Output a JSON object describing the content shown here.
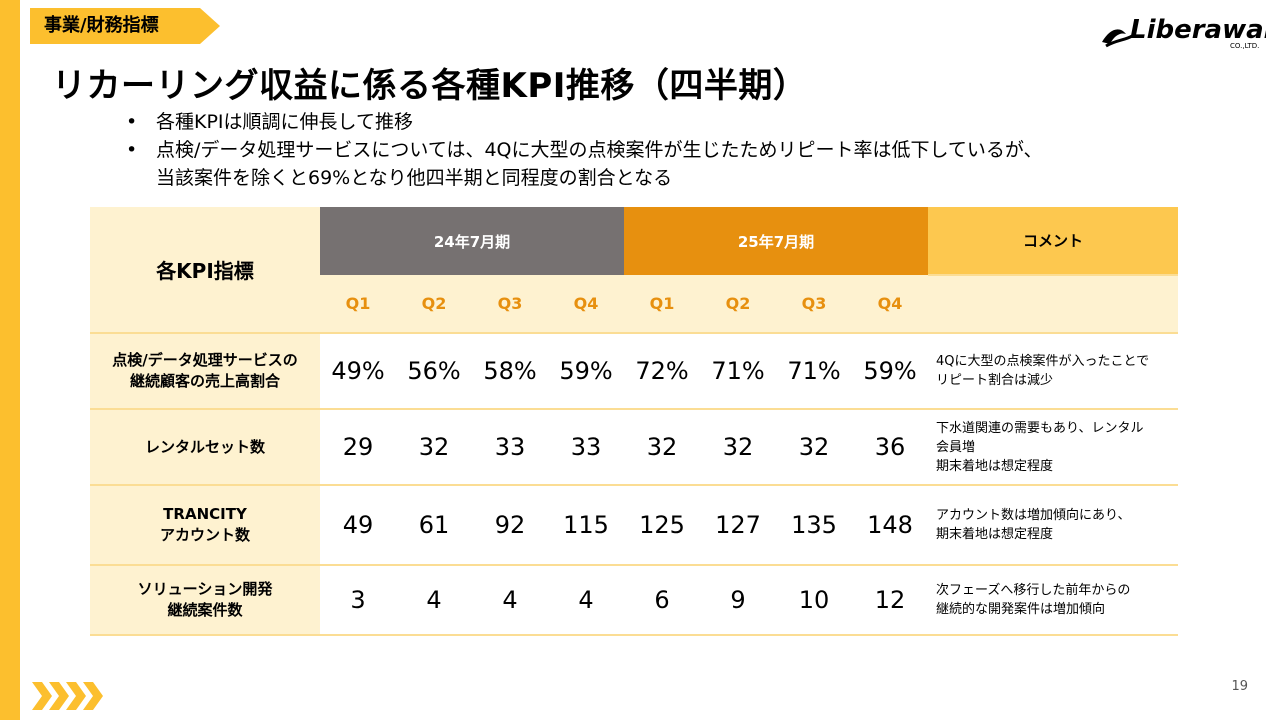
{
  "section_tag": "事業/財務指標",
  "logo": {
    "text": "Liberaware",
    "sub": "CO.,LTD."
  },
  "title": "リカーリング収益に係る各種KPI推移（四半期）",
  "bullets": [
    "各種KPIは順調に伸長して推移",
    "点検/データ処理サービスについては、4Qに大型の点検案件が生じたためリピート率は低下しているが、",
    "当該案件を除くと69%となり他四半期と同程度の割合となる"
  ],
  "table": {
    "kpi_header": "各KPI指標",
    "period_24": "24年7月期",
    "period_25": "25年7月期",
    "comment_header": "コメント",
    "quarters": [
      "Q1",
      "Q2",
      "Q3",
      "Q4",
      "Q1",
      "Q2",
      "Q3",
      "Q4"
    ],
    "rows": [
      {
        "label_lines": [
          "点検/データ処理サービスの",
          "継続顧客の売上高割合"
        ],
        "values": [
          "49%",
          "56%",
          "58%",
          "59%",
          "72%",
          "71%",
          "71%",
          "59%"
        ],
        "comment_lines": [
          "4Qに大型の点検案件が入ったことで",
          "リピート割合は減少"
        ]
      },
      {
        "label_lines": [
          "レンタルセット数"
        ],
        "values": [
          "29",
          "32",
          "33",
          "33",
          "32",
          "32",
          "32",
          "36"
        ],
        "comment_lines": [
          "下水道関連の需要もあり、レンタル",
          "会員増",
          "期末着地は想定程度"
        ]
      },
      {
        "label_lines": [
          "TRANCITY",
          "アカウント数"
        ],
        "values": [
          "49",
          "61",
          "92",
          "115",
          "125",
          "127",
          "135",
          "148"
        ],
        "comment_lines": [
          "アカウント数は増加傾向にあり、",
          "期末着地は想定程度"
        ]
      },
      {
        "label_lines": [
          "ソリューション開発",
          "継続案件数"
        ],
        "values": [
          "3",
          "4",
          "4",
          "4",
          "6",
          "9",
          "10",
          "12"
        ],
        "comment_lines": [
          "次フェーズへ移行した前年からの",
          "継続的な開発案件は増加傾向"
        ]
      }
    ]
  },
  "page_number": "19",
  "colors": {
    "accent_yellow": "#FCBF2E",
    "header_gray": "#767171",
    "header_orange": "#E7900F",
    "light_cream": "#FEF2D0"
  }
}
